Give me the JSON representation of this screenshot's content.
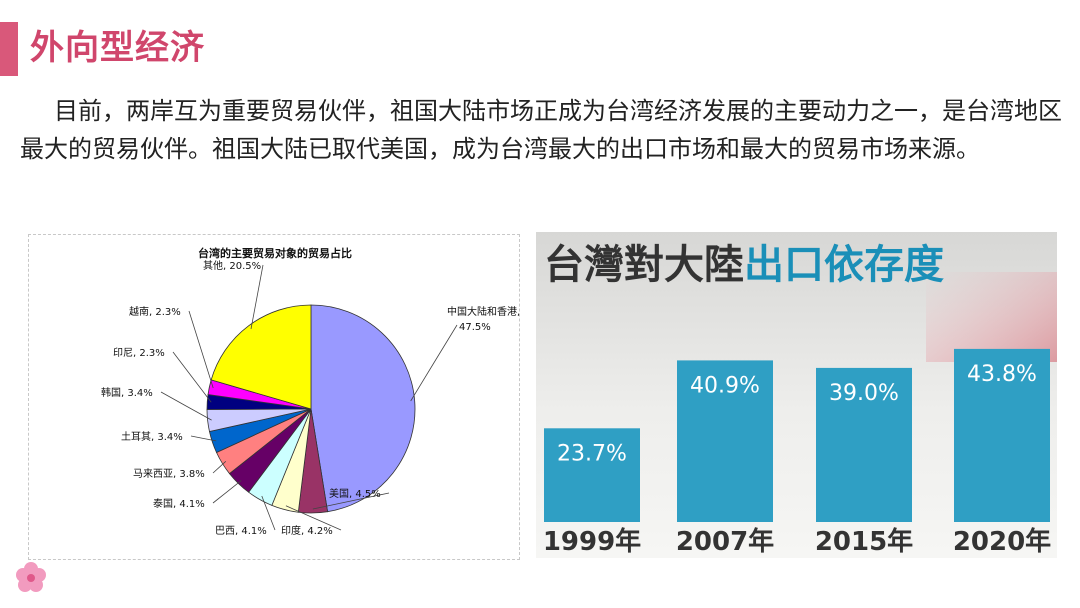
{
  "slide": {
    "title": "外向型经济",
    "paragraph": "目前，两岸互为重要贸易伙伴，祖国大陆市场正成为台湾经济发展的主要动力之一，是台湾地区最大的贸易伙伴。祖国大陆已取代美国，成为台湾最大的出口市场和最大的贸易市场来源。",
    "accent_color": "#d0466c"
  },
  "chart_data": [
    {
      "type": "pie",
      "title": "台湾的主要贸易对象的贸易占比",
      "slices": [
        {
          "label": "中国大陆和香港",
          "value": 47.5,
          "display": "47.5%",
          "color": "#9999ff"
        },
        {
          "label": "美国",
          "value": 4.5,
          "display": "4.5%",
          "color": "#993366"
        },
        {
          "label": "印度",
          "value": 4.2,
          "display": "4.2%",
          "color": "#ffffcc"
        },
        {
          "label": "巴西",
          "value": 4.1,
          "display": "4.1%",
          "color": "#ccffff"
        },
        {
          "label": "泰国",
          "value": 4.1,
          "display": "4.1%",
          "color": "#660066"
        },
        {
          "label": "马来西亚",
          "value": 3.8,
          "display": "3.8%",
          "color": "#ff8080"
        },
        {
          "label": "土耳其",
          "value": 3.4,
          "display": "3.4%",
          "color": "#0066cc"
        },
        {
          "label": "韩国",
          "value": 3.4,
          "display": "3.4%",
          "color": "#ccccff"
        },
        {
          "label": "印尼",
          "value": 2.3,
          "display": "2.3%",
          "color": "#000080"
        },
        {
          "label": "越南",
          "value": 2.3,
          "display": "2.3%",
          "color": "#ff00ff"
        },
        {
          "label": "其他",
          "value": 20.5,
          "display": "20.5%",
          "color": "#ffff00"
        }
      ]
    },
    {
      "type": "bar",
      "title_part1": "台灣對大陸",
      "title_part2": "出口依存度",
      "categories": [
        "1999年",
        "2007年",
        "2015年",
        "2020年"
      ],
      "values": [
        23.7,
        40.9,
        39.0,
        43.8
      ],
      "value_labels": [
        "23.7%",
        "40.9%",
        "39.0%",
        "43.8%"
      ],
      "ylim": [
        0,
        50
      ],
      "bar_color": "#2f9fc4",
      "title_color_1": "#333333",
      "title_color_2": "#1a8fb8"
    }
  ]
}
